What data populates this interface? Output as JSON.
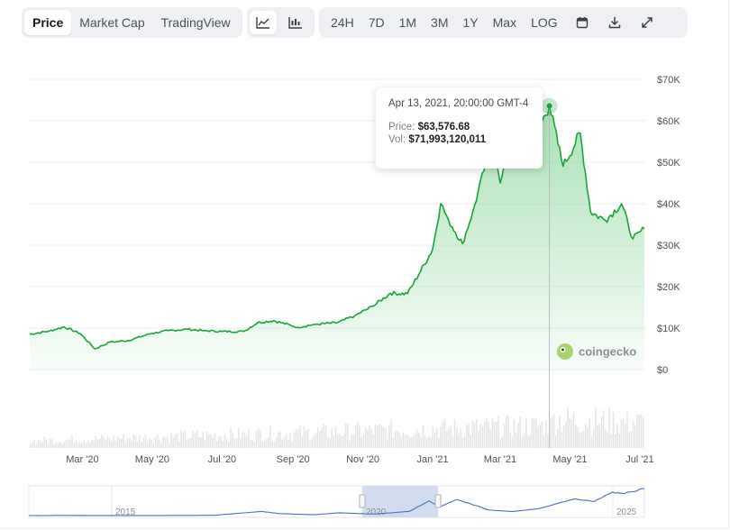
{
  "tabs": [
    {
      "label": "Price",
      "active": true
    },
    {
      "label": "Market Cap",
      "active": false
    },
    {
      "label": "TradingView",
      "active": false
    }
  ],
  "chart_type_buttons": [
    {
      "icon": "line-chart-icon",
      "active": true
    },
    {
      "icon": "candlestick-chart-icon",
      "active": false
    }
  ],
  "ranges": [
    "24H",
    "7D",
    "1M",
    "3M",
    "1Y",
    "Max",
    "LOG"
  ],
  "action_icons": [
    "calendar-icon",
    "download-icon",
    "expand-icon"
  ],
  "tooltip": {
    "date": "Apr 13, 2021, 20:00:00 GMT-4",
    "price_label": "Price:",
    "price_value": "$63,576.68",
    "vol_label": "Vol:",
    "vol_value": "$71,993,120,011"
  },
  "watermark": "coingecko",
  "colors": {
    "line": "#1aa33a",
    "fill_top": "#8bd79b",
    "volume": "#e5e6e8",
    "navigator_line": "#4a6fbf",
    "navigator_selection": "#c9d6ee"
  },
  "chart_data": {
    "type": "area",
    "title": "",
    "xlabel": "",
    "ylabel": "",
    "y_ticks": [
      "$0",
      "$10K",
      "$20K",
      "$30K",
      "$40K",
      "$50K",
      "$60K",
      "$70K"
    ],
    "ylim": [
      0,
      70000
    ],
    "x_ticks": [
      "Mar '20",
      "May '20",
      "Jul '20",
      "Sep '20",
      "Nov '20",
      "Jan '21",
      "Mar '21",
      "May '21",
      "Jul '21"
    ],
    "grid": true,
    "series": [
      {
        "values": [
          {
            "x": "2020-01-15",
            "y": 8500
          },
          {
            "x": "2020-02-01",
            "y": 9300
          },
          {
            "x": "2020-02-14",
            "y": 10300
          },
          {
            "x": "2020-02-28",
            "y": 8700
          },
          {
            "x": "2020-03-12",
            "y": 5000
          },
          {
            "x": "2020-03-25",
            "y": 6600
          },
          {
            "x": "2020-04-10",
            "y": 7000
          },
          {
            "x": "2020-04-30",
            "y": 8700
          },
          {
            "x": "2020-05-15",
            "y": 9400
          },
          {
            "x": "2020-06-01",
            "y": 9700
          },
          {
            "x": "2020-06-15",
            "y": 9400
          },
          {
            "x": "2020-07-01",
            "y": 9200
          },
          {
            "x": "2020-07-20",
            "y": 9200
          },
          {
            "x": "2020-08-01",
            "y": 11300
          },
          {
            "x": "2020-08-15",
            "y": 11800
          },
          {
            "x": "2020-09-05",
            "y": 10200
          },
          {
            "x": "2020-09-20",
            "y": 10900
          },
          {
            "x": "2020-10-10",
            "y": 11300
          },
          {
            "x": "2020-10-25",
            "y": 13000
          },
          {
            "x": "2020-11-10",
            "y": 15300
          },
          {
            "x": "2020-11-25",
            "y": 18400
          },
          {
            "x": "2020-12-10",
            "y": 18300
          },
          {
            "x": "2020-12-20",
            "y": 23000
          },
          {
            "x": "2021-01-01",
            "y": 29000
          },
          {
            "x": "2021-01-08",
            "y": 40000
          },
          {
            "x": "2021-01-15",
            "y": 36000
          },
          {
            "x": "2021-01-27",
            "y": 30400
          },
          {
            "x": "2021-02-05",
            "y": 38000
          },
          {
            "x": "2021-02-15",
            "y": 48000
          },
          {
            "x": "2021-02-21",
            "y": 57000
          },
          {
            "x": "2021-03-01",
            "y": 45000
          },
          {
            "x": "2021-03-13",
            "y": 61000
          },
          {
            "x": "2021-03-25",
            "y": 52500
          },
          {
            "x": "2021-04-13",
            "y": 63576.68
          },
          {
            "x": "2021-04-25",
            "y": 49000
          },
          {
            "x": "2021-05-10",
            "y": 57000
          },
          {
            "x": "2021-05-19",
            "y": 38000
          },
          {
            "x": "2021-06-01",
            "y": 36000
          },
          {
            "x": "2021-06-15",
            "y": 40000
          },
          {
            "x": "2021-06-25",
            "y": 31500
          },
          {
            "x": "2021-07-05",
            "y": 34000
          }
        ]
      }
    ],
    "tooltip_point": {
      "x": "2021-04-13",
      "y": 63576.68,
      "volume": 71993120011
    },
    "navigator_labels": [
      "2015",
      "2020",
      "2025"
    ]
  }
}
